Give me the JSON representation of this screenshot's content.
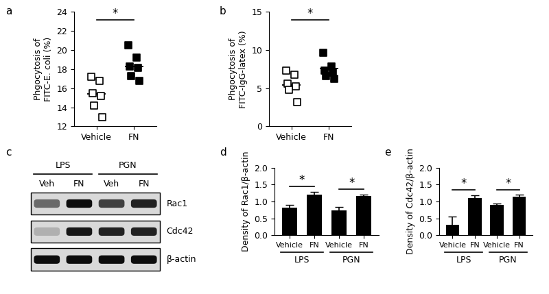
{
  "chart_data": [
    {
      "type": "scatter",
      "annotations": [
        "a"
      ],
      "y_label": "Phgocytosis of\nFITC-E. coli (%)",
      "categories": [
        "Vehicle",
        "FN"
      ],
      "values": [
        [
          17.2,
          16.8,
          15.5,
          15.2,
          14.2,
          13.0
        ],
        [
          20.5,
          19.2,
          18.3,
          18.1,
          17.3,
          16.8
        ]
      ],
      "means": [
        15.4,
        18.3
      ],
      "marker": "square",
      "ylim": [
        12,
        24
      ],
      "yticks": [
        12,
        14,
        16,
        18,
        20,
        22,
        24
      ],
      "significance": [
        {
          "between": [
            0,
            1
          ],
          "text": "*"
        }
      ]
    },
    {
      "type": "scatter",
      "annotations": [
        "b"
      ],
      "y_label": "Phgocytosis of\nFITC-IgG-latex (%)",
      "categories": [
        "Vehicle",
        "FN"
      ],
      "values": [
        [
          7.3,
          6.8,
          5.6,
          5.2,
          4.8,
          3.2
        ],
        [
          9.6,
          7.8,
          7.3,
          7.0,
          6.6,
          6.2
        ]
      ],
      "means": [
        5.4,
        7.6
      ],
      "marker": "square",
      "ylim": [
        0,
        15
      ],
      "yticks": [
        0,
        5,
        10,
        15
      ],
      "significance": [
        {
          "between": [
            0,
            1
          ],
          "text": "*"
        }
      ]
    },
    {
      "type": "bar",
      "annotations": [
        "d"
      ],
      "y_label": "Density of Rac1/β-actin",
      "categories": [
        "Vehicle",
        "FN",
        "Vehicle",
        "FN"
      ],
      "groups": [
        {
          "label": "LPS",
          "span": [
            0,
            1
          ]
        },
        {
          "label": "PGN",
          "span": [
            2,
            3
          ]
        }
      ],
      "values": [
        0.82,
        1.21,
        0.74,
        1.16
      ],
      "errors": [
        0.08,
        0.08,
        0.1,
        0.04
      ],
      "color": "#000000",
      "ylim": [
        0,
        2
      ],
      "yticks": [
        {
          "value": 0,
          "label": "0.0"
        },
        {
          "value": 0.5,
          "label": "0.5"
        },
        {
          "value": 1,
          "label": "1.0"
        },
        {
          "value": 1.5,
          "label": "1.5"
        },
        {
          "value": 2,
          "label": "2.0"
        }
      ],
      "significance": [
        {
          "between": [
            0,
            1
          ],
          "text": "*"
        },
        {
          "between": [
            2,
            3
          ],
          "text": "*"
        }
      ]
    },
    {
      "type": "bar",
      "annotations": [
        "e"
      ],
      "y_label": "Density of Cdc42/β-actin",
      "categories": [
        "Vehicle",
        "FN",
        "Vehicle",
        "FN"
      ],
      "groups": [
        {
          "label": "LPS",
          "span": [
            0,
            1
          ]
        },
        {
          "label": "PGN",
          "span": [
            2,
            3
          ]
        }
      ],
      "values": [
        0.3,
        1.1,
        0.9,
        1.13
      ],
      "errors": [
        0.26,
        0.08,
        0.04,
        0.06
      ],
      "color": "#000000",
      "ylim": [
        0,
        2
      ],
      "yticks": [
        {
          "value": 0,
          "label": "0.0"
        },
        {
          "value": 0.5,
          "label": "0.5"
        },
        {
          "value": 1,
          "label": "1.0"
        },
        {
          "value": 1.5,
          "label": "1.5"
        },
        {
          "value": 2,
          "label": "2.0"
        }
      ],
      "significance": [
        {
          "between": [
            0,
            1
          ],
          "text": "*"
        },
        {
          "between": [
            2,
            3
          ],
          "text": "*"
        }
      ]
    }
  ],
  "blot": {
    "annotations": [
      "c"
    ],
    "groups": [
      {
        "label": "LPS",
        "lanes": [
          "Veh",
          "FN"
        ]
      },
      {
        "label": "PGN",
        "lanes": [
          "Veh",
          "FN"
        ]
      }
    ],
    "rows": [
      {
        "label": "Rac1",
        "band_intensity": [
          0.55,
          1.0,
          0.75,
          0.9
        ]
      },
      {
        "label": "Cdc42",
        "band_intensity": [
          0.2,
          0.95,
          0.9,
          0.9
        ]
      },
      {
        "label": "β-actin",
        "band_intensity": [
          1.0,
          1.0,
          1.0,
          1.0
        ]
      }
    ]
  }
}
